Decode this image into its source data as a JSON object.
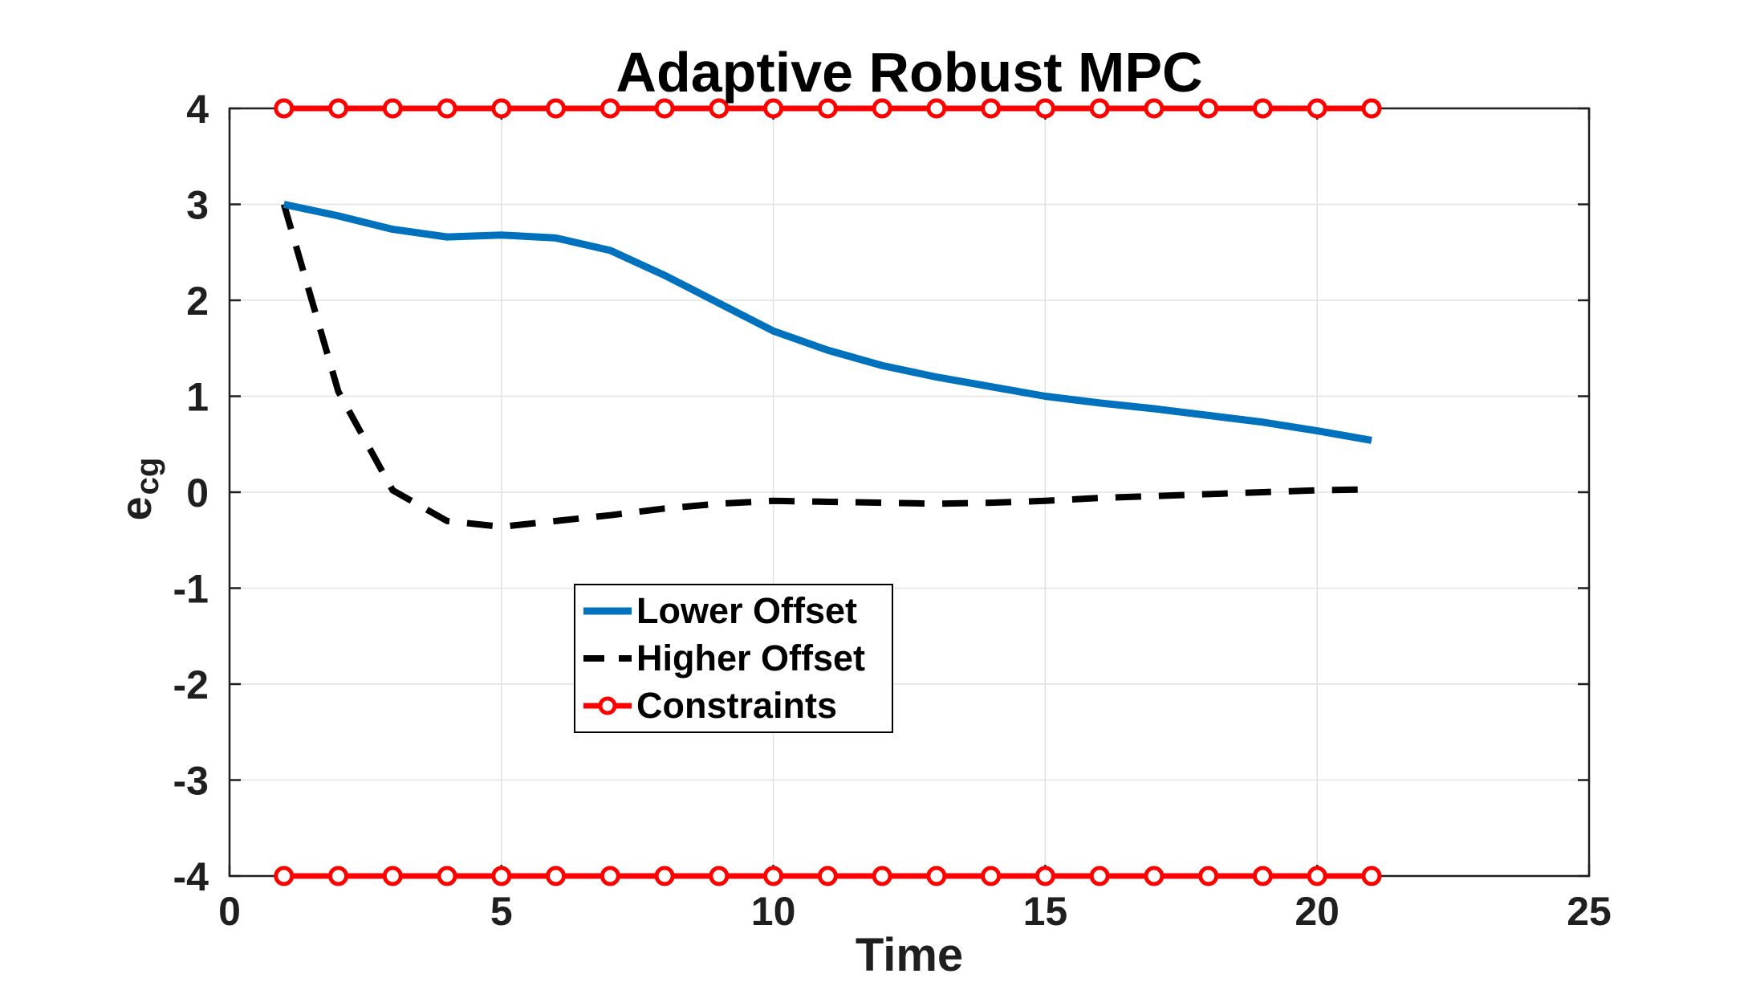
{
  "chart_data": {
    "type": "line",
    "title": "Adaptive Robust MPC",
    "xlabel": "Time",
    "ylabel_base": "e",
    "ylabel_sub": "cg",
    "xlim": [
      0,
      25
    ],
    "ylim": [
      -4,
      4
    ],
    "xticks": [
      0,
      5,
      10,
      15,
      20,
      25
    ],
    "yticks": [
      -4,
      -3,
      -2,
      -1,
      0,
      1,
      2,
      3,
      4
    ],
    "grid": true,
    "legend_position": "inside-middle-left",
    "x": [
      1,
      2,
      3,
      4,
      5,
      6,
      7,
      8,
      9,
      10,
      11,
      12,
      13,
      14,
      15,
      16,
      17,
      18,
      19,
      20,
      21
    ],
    "series": [
      {
        "name": "Lower Offset",
        "color": "#0072BD",
        "style": "solid",
        "line_width": 9,
        "values": [
          3.0,
          2.88,
          2.74,
          2.66,
          2.68,
          2.65,
          2.52,
          2.26,
          1.97,
          1.68,
          1.48,
          1.32,
          1.2,
          1.1,
          1.0,
          0.93,
          0.87,
          0.8,
          0.73,
          0.64,
          0.54
        ]
      },
      {
        "name": "Higher Offset",
        "color": "#000000",
        "style": "dashed",
        "line_width": 8,
        "values": [
          3.0,
          1.05,
          0.02,
          -0.3,
          -0.36,
          -0.3,
          -0.24,
          -0.17,
          -0.12,
          -0.09,
          -0.1,
          -0.11,
          -0.12,
          -0.11,
          -0.09,
          -0.06,
          -0.04,
          -0.02,
          0.0,
          0.02,
          0.03
        ]
      },
      {
        "name": "Constraints",
        "color": "#FF0000",
        "style": "solid",
        "marker": "circle",
        "line_width": 7,
        "upper": 4,
        "lower": -4
      }
    ],
    "colors": {
      "grid": "#e2e2e2",
      "axis": "#1f1f1f",
      "tick_label": "#1f1f1f",
      "title": "#000000",
      "background": "#ffffff"
    }
  }
}
